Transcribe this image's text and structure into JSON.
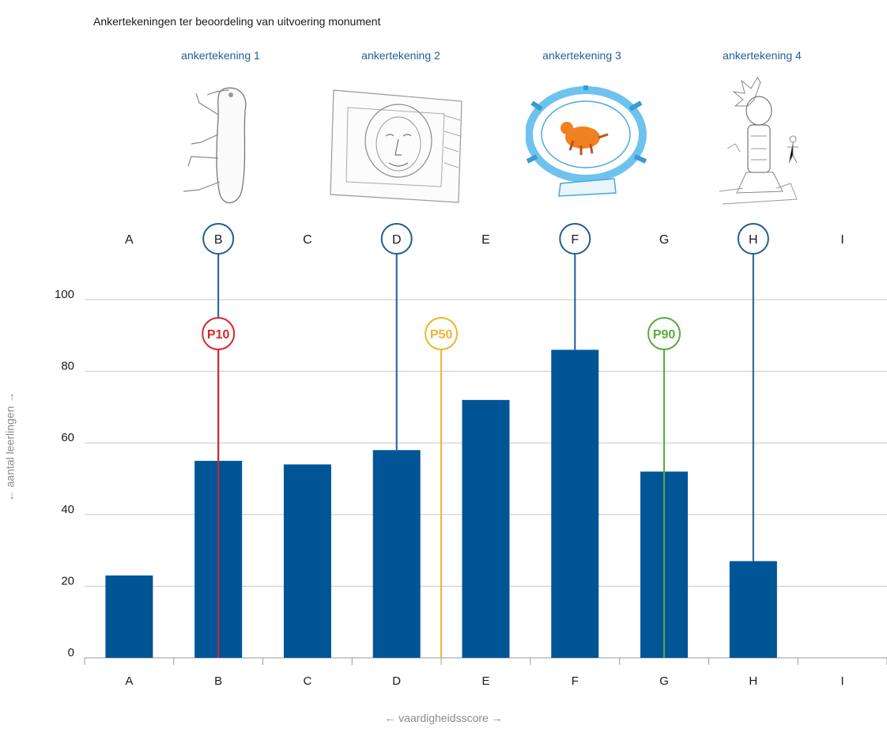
{
  "title": "Ankertekeningen ter beoordeling van uitvoering monument",
  "anchor_labels": [
    "ankertekening 1",
    "ankertekening 2",
    "ankertekening 3",
    "ankertekening 4"
  ],
  "colors": {
    "bar": "#005596",
    "anchor": "#1f5e96",
    "p10": "#d7262c",
    "p50": "#f0b32d",
    "p90": "#5aaa3c",
    "grid": "#c8c8c8",
    "axis_text": "#1a1a1a",
    "axis_label": "#8a8a8a"
  },
  "chart_data": {
    "type": "bar",
    "title": "Ankertekeningen ter beoordeling van uitvoering monument",
    "xlabel": "← vaardigheidsscore →",
    "ylabel": "← aantal leerlingen →",
    "categories": [
      "A",
      "B",
      "C",
      "D",
      "E",
      "F",
      "G",
      "H",
      "I"
    ],
    "values": [
      23,
      55,
      54,
      58,
      72,
      86,
      52,
      27,
      0
    ],
    "ylim": [
      0,
      100
    ],
    "yticks": [
      0,
      20,
      40,
      60,
      80,
      100
    ],
    "grid": true,
    "anchors": [
      {
        "category": "B",
        "label": "ankertekening 1"
      },
      {
        "category": "D",
        "label": "ankertekening 2"
      },
      {
        "category": "F",
        "label": "ankertekening 3"
      },
      {
        "category": "H",
        "label": "ankertekening 4"
      }
    ],
    "percentiles": [
      {
        "label": "P10",
        "category_pos": 1,
        "color": "#d7262c"
      },
      {
        "label": "P50",
        "category_pos": 3.5,
        "color": "#f0b32d"
      },
      {
        "label": "P90",
        "category_pos": 6,
        "color": "#5aaa3c"
      }
    ]
  }
}
